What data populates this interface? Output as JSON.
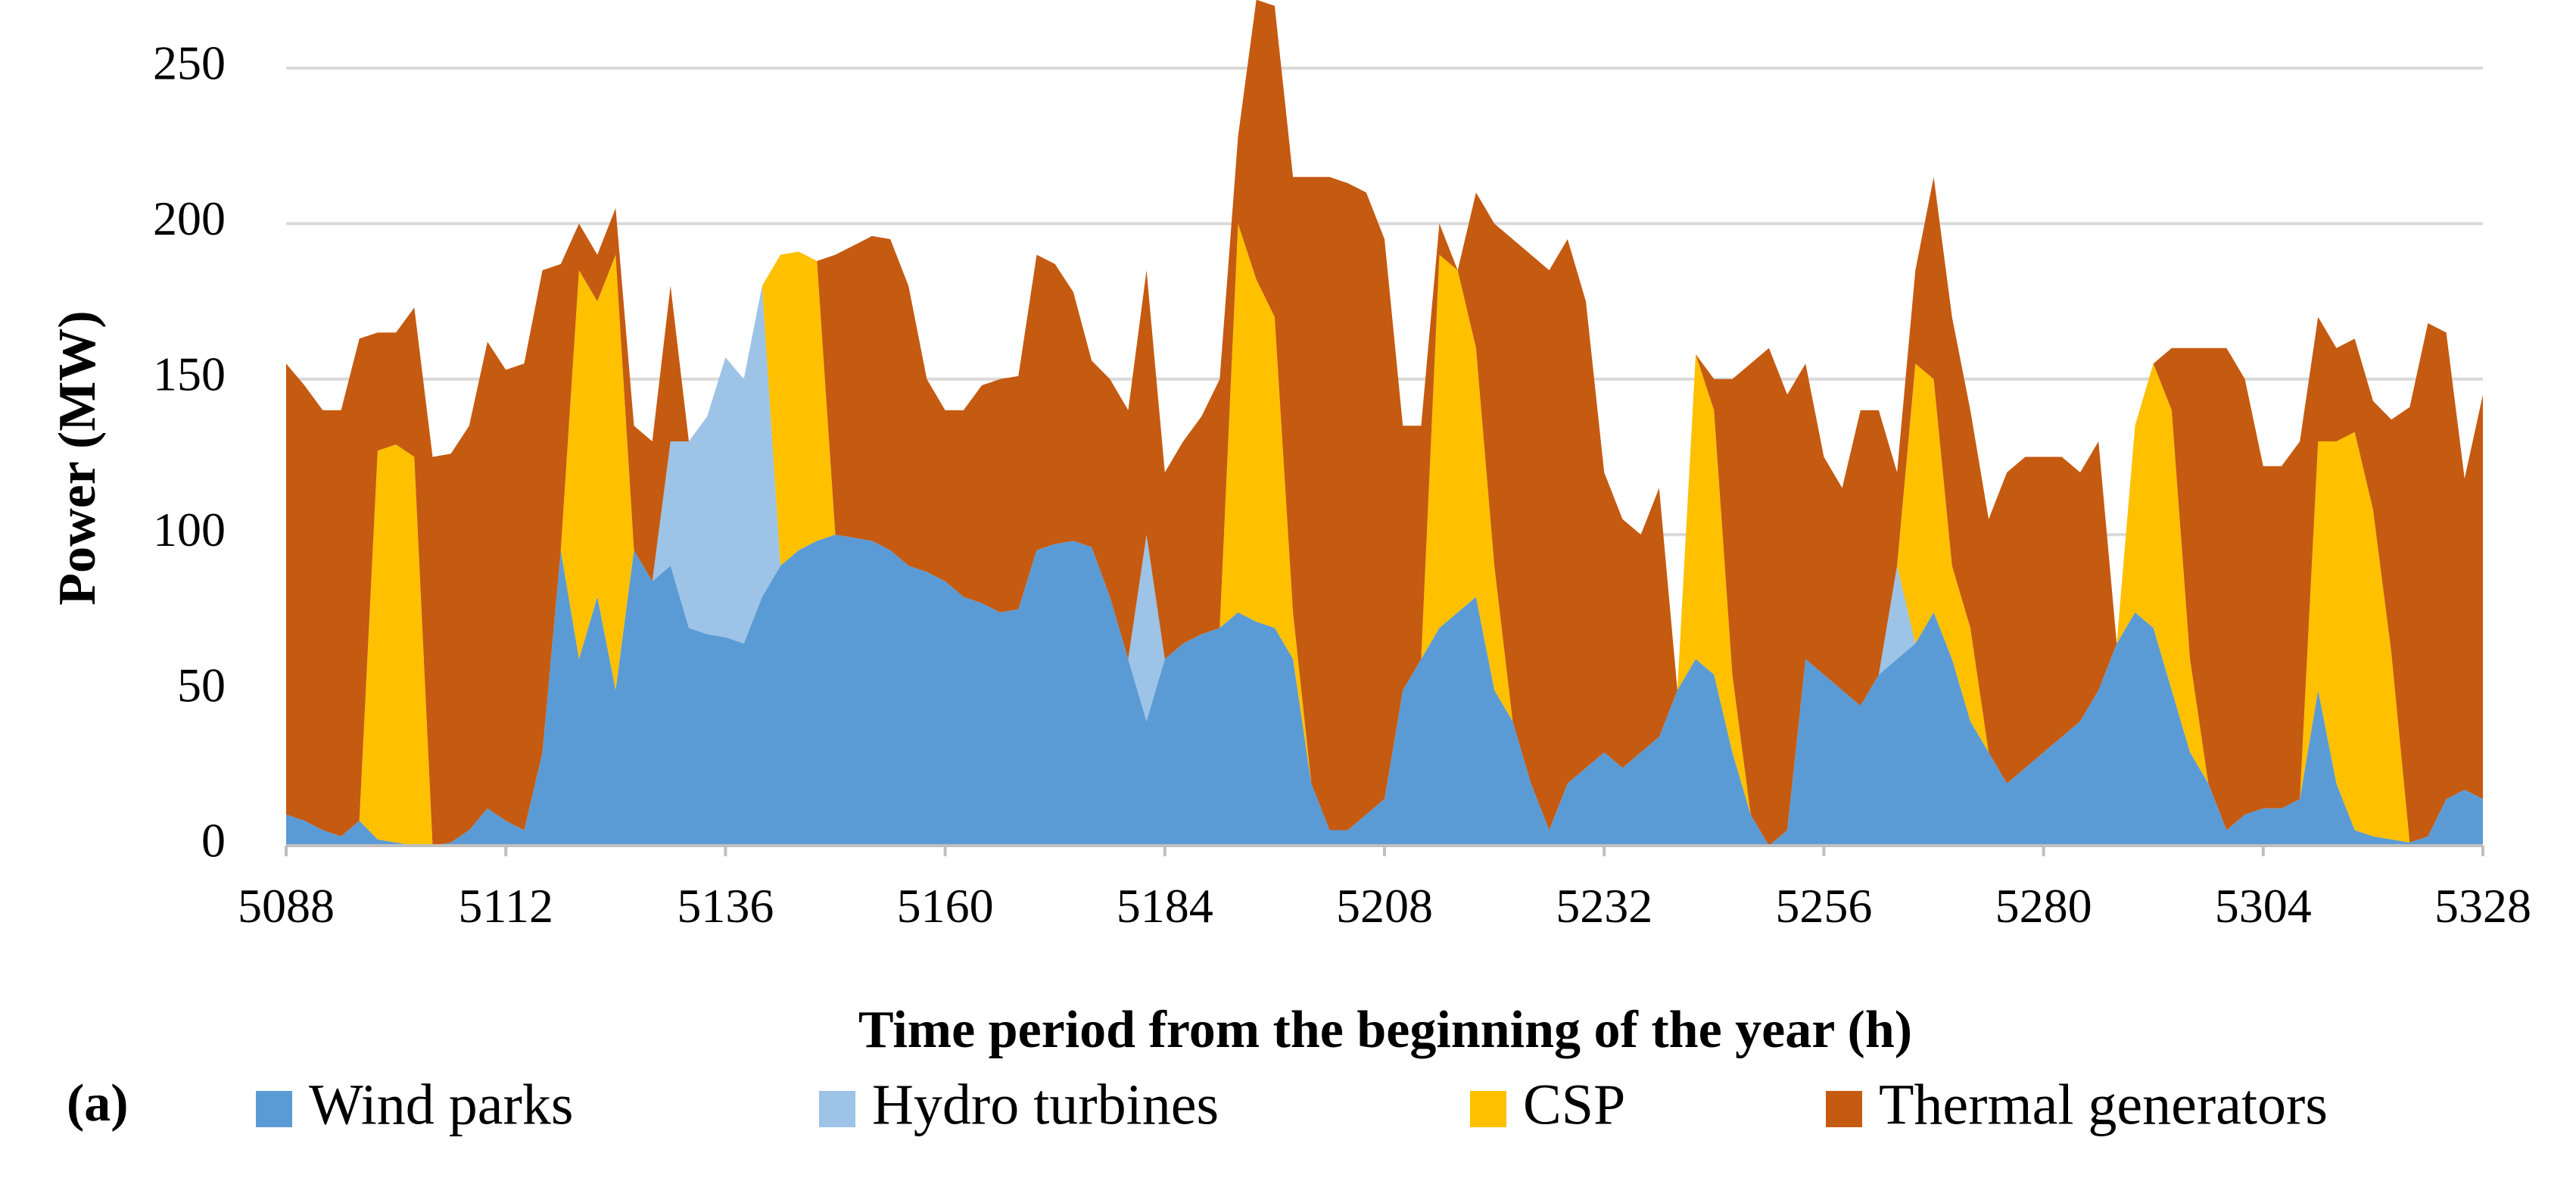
{
  "chart_data": {
    "type": "area",
    "stacked": true,
    "panel_label": "(a)",
    "xlabel": "Time period from the beginning of the year (h)",
    "ylabel": "Power (MW)",
    "xlim": [
      5088,
      5328
    ],
    "ylim": [
      0,
      250
    ],
    "xticks": [
      5088,
      5112,
      5136,
      5160,
      5184,
      5208,
      5232,
      5256,
      5280,
      5304,
      5328
    ],
    "yticks": [
      0,
      50,
      100,
      150,
      200,
      250
    ],
    "grid": "horizontal",
    "legend_position": "bottom",
    "x_step": 2,
    "series": [
      {
        "name": "Wind parks",
        "color": "#5b9bd5",
        "values": [
          10,
          8,
          5,
          3,
          8,
          2,
          1,
          0,
          0,
          1,
          5,
          12,
          8,
          5,
          30,
          95,
          60,
          80,
          50,
          95,
          85,
          90,
          70,
          68,
          67,
          65,
          80,
          90,
          95,
          98,
          100,
          99,
          98,
          95,
          90,
          88,
          85,
          80,
          78,
          75,
          76,
          95,
          97,
          98,
          96,
          80,
          60,
          40,
          60,
          65,
          68,
          70,
          75,
          72,
          70,
          60,
          20,
          5,
          5,
          10,
          15,
          50,
          60,
          70,
          75,
          80,
          50,
          40,
          20,
          5,
          20,
          25,
          30,
          25,
          30,
          35,
          50,
          60,
          55,
          30,
          10,
          0,
          5,
          60,
          55,
          50,
          45,
          55,
          60,
          65,
          75,
          60,
          40,
          30,
          20,
          25,
          30,
          35,
          40,
          50,
          65,
          75,
          70,
          50,
          30,
          20,
          5,
          10,
          12,
          12,
          15,
          50,
          20,
          5,
          3,
          2,
          1,
          3,
          15,
          18,
          15
        ]
      },
      {
        "name": "Hydro turbines",
        "color": "#9dc3e6",
        "values": [
          0,
          0,
          0,
          0,
          0,
          0,
          0,
          0,
          0,
          0,
          0,
          0,
          0,
          0,
          0,
          0,
          0,
          0,
          0,
          0,
          0,
          40,
          60,
          70,
          90,
          85,
          100,
          0,
          0,
          0,
          0,
          0,
          0,
          0,
          0,
          0,
          0,
          0,
          0,
          0,
          0,
          0,
          0,
          0,
          0,
          0,
          0,
          60,
          0,
          0,
          0,
          0,
          0,
          0,
          0,
          0,
          0,
          0,
          0,
          0,
          0,
          0,
          0,
          0,
          0,
          0,
          0,
          0,
          0,
          0,
          0,
          0,
          0,
          0,
          0,
          0,
          0,
          0,
          0,
          0,
          0,
          0,
          0,
          0,
          0,
          0,
          0,
          0,
          30,
          0,
          0,
          0,
          0,
          0,
          0,
          0,
          0,
          0,
          0,
          0,
          0,
          0,
          0,
          0,
          0,
          0,
          0,
          0,
          0,
          0,
          0,
          0,
          0,
          0,
          0,
          0,
          0,
          0,
          0,
          0,
          0
        ]
      },
      {
        "name": "CSP",
        "color": "#ffc000",
        "values": [
          0,
          0,
          0,
          0,
          0,
          125,
          128,
          125,
          0,
          0,
          0,
          0,
          0,
          0,
          0,
          0,
          125,
          95,
          140,
          0,
          0,
          0,
          0,
          0,
          0,
          0,
          0,
          100,
          96,
          90,
          0,
          0,
          0,
          0,
          0,
          0,
          0,
          0,
          0,
          0,
          0,
          0,
          0,
          0,
          0,
          0,
          0,
          0,
          0,
          0,
          0,
          0,
          125,
          110,
          100,
          15,
          0,
          0,
          0,
          0,
          0,
          0,
          0,
          120,
          110,
          80,
          40,
          0,
          0,
          0,
          0,
          0,
          0,
          0,
          0,
          0,
          0,
          98,
          85,
          25,
          0,
          0,
          0,
          0,
          0,
          0,
          0,
          0,
          0,
          90,
          75,
          30,
          30,
          0,
          0,
          0,
          0,
          0,
          0,
          0,
          0,
          60,
          85,
          90,
          30,
          0,
          0,
          0,
          0,
          0,
          0,
          80,
          110,
          128,
          105,
          60,
          0,
          0,
          0,
          0,
          0
        ]
      },
      {
        "name": "Thermal generators",
        "color": "#c55a11",
        "values": [
          145,
          140,
          135,
          137,
          155,
          38,
          36,
          48,
          125,
          125,
          130,
          150,
          145,
          150,
          155,
          92,
          15,
          15,
          15,
          40,
          45,
          50,
          0,
          0,
          0,
          0,
          0,
          0,
          0,
          0,
          90,
          94,
          98,
          100,
          90,
          62,
          55,
          60,
          70,
          75,
          75,
          95,
          90,
          80,
          60,
          70,
          80,
          85,
          60,
          65,
          70,
          80,
          28,
          90,
          100,
          140,
          195,
          210,
          208,
          200,
          180,
          85,
          75,
          10,
          0,
          50,
          110,
          155,
          170,
          180,
          175,
          150,
          90,
          80,
          70,
          80,
          0,
          0,
          10,
          95,
          145,
          160,
          140,
          95,
          70,
          65,
          95,
          85,
          30,
          30,
          65,
          80,
          70,
          75,
          100,
          100,
          95,
          90,
          80,
          80,
          0,
          0,
          0,
          20,
          100,
          140,
          155,
          140,
          110,
          110,
          115,
          40,
          30,
          30,
          35,
          75,
          140,
          165,
          150,
          100,
          130
        ]
      }
    ]
  }
}
